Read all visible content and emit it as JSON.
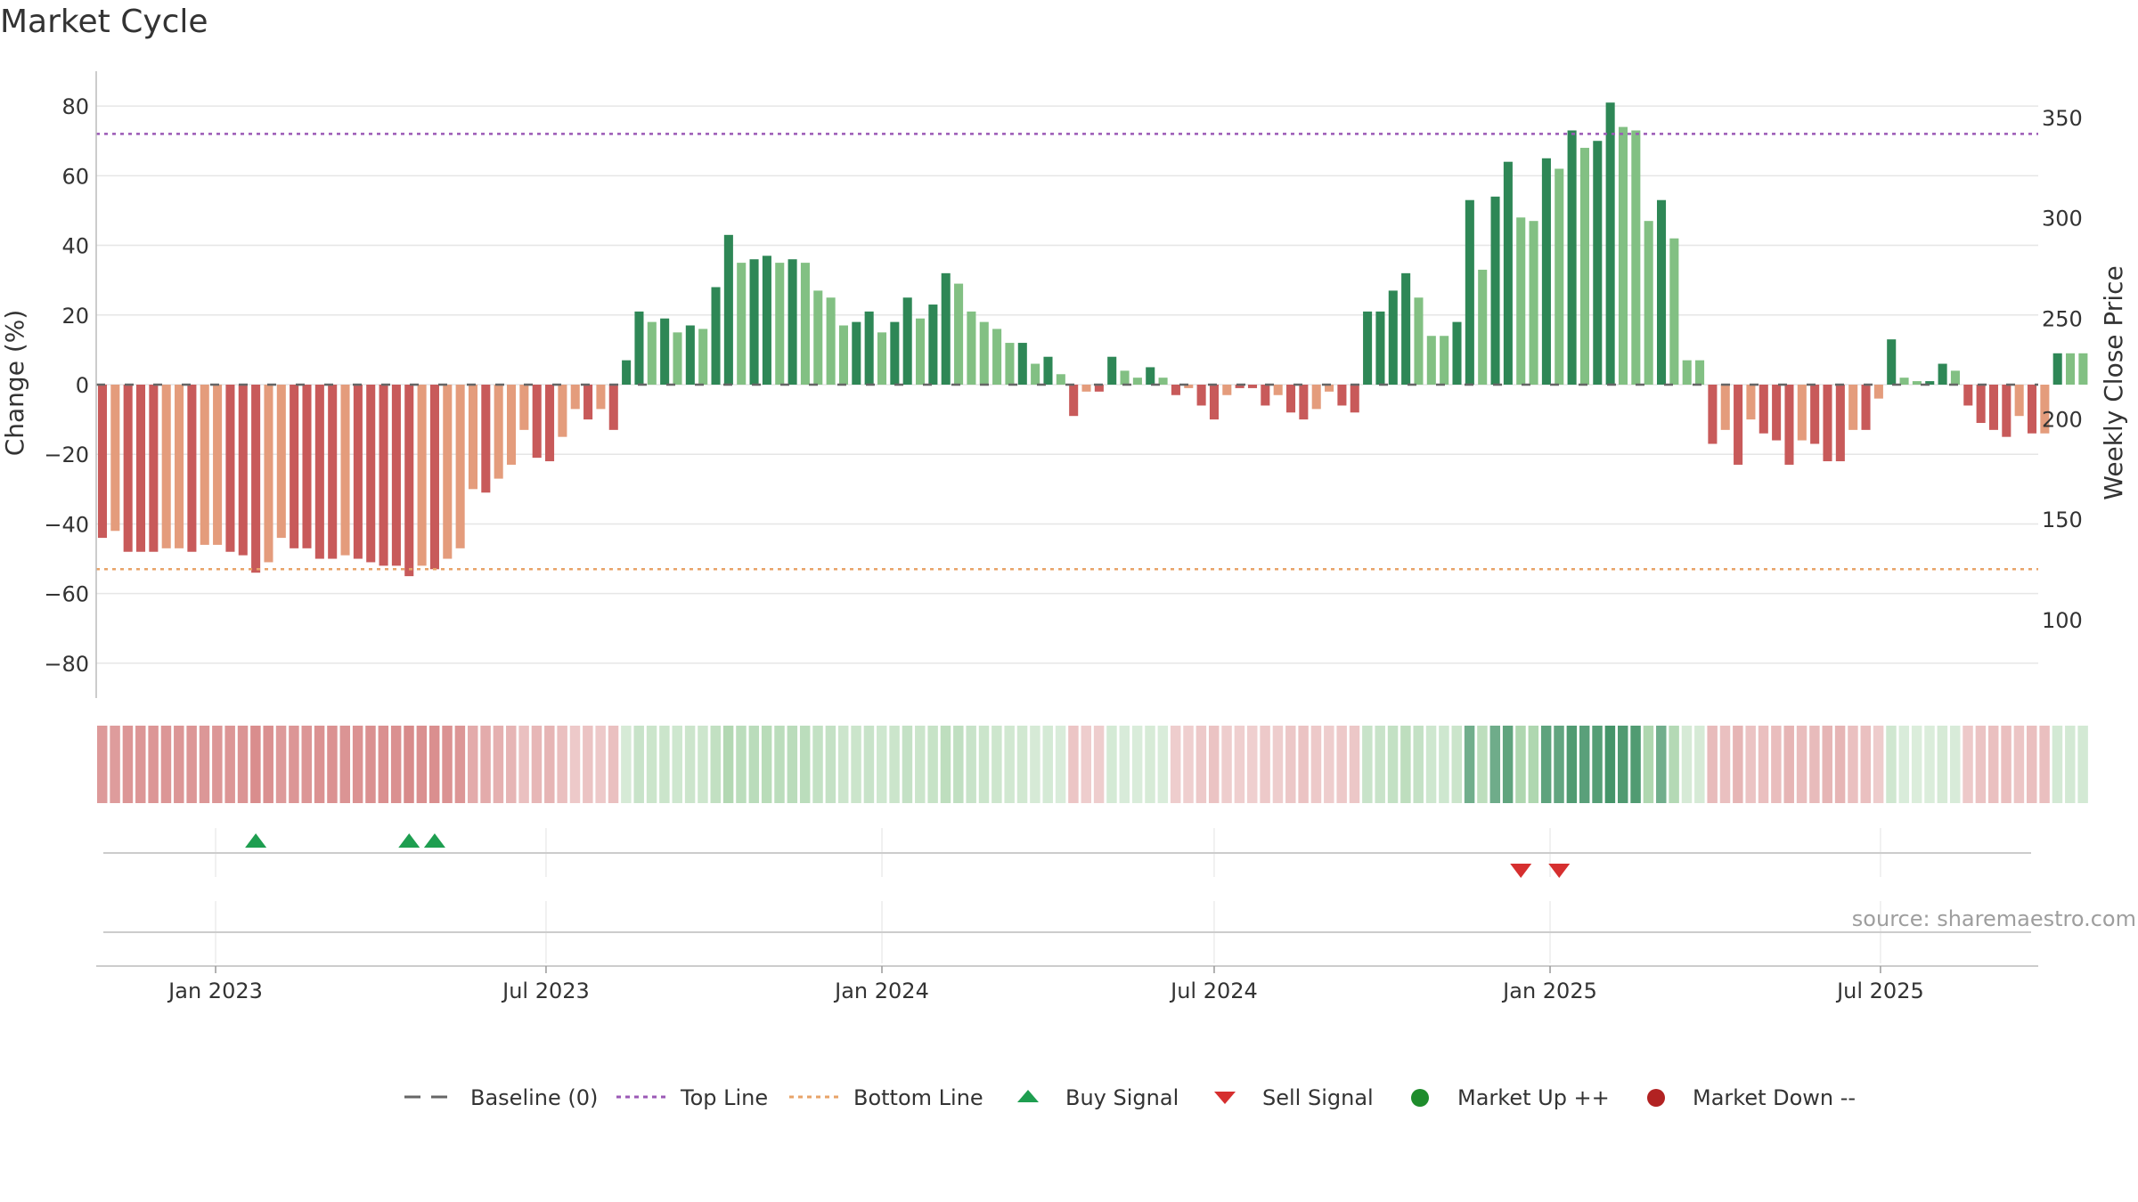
{
  "chart_data": {
    "type": "bar",
    "title": "Market Cycle",
    "ylabel": "Change (%)",
    "y2label": "Weekly Close Price",
    "ylim": [
      -90,
      90
    ],
    "y_ticks": [
      80,
      60,
      40,
      20,
      0,
      -20,
      -40,
      -60,
      -80
    ],
    "y_tick_labels": [
      "80",
      "60",
      "40",
      "20",
      "0",
      "−20",
      "−40",
      "−60",
      "−80"
    ],
    "y2_ticks": [
      350,
      300,
      250,
      200,
      150,
      100
    ],
    "y2_tick_labels": [
      "350",
      "300",
      "250",
      "200",
      "150",
      "100"
    ],
    "y2lim": [
      61,
      373
    ],
    "x_start": "2022-10-31",
    "x_end": "2025-09-22",
    "x_ticks": [
      "2023-01-01",
      "2023-07-01",
      "2024-01-01",
      "2024-07-01",
      "2025-01-01",
      "2025-07-01"
    ],
    "x_tick_labels": [
      "Jan 2023",
      "Jul 2023",
      "Jan 2024",
      "Jul 2024",
      "Jan 2025",
      "Jul 2025"
    ],
    "top_line": 72,
    "bottom_line": -53,
    "grid": true,
    "legend_position": "bottom-center",
    "colors": {
      "down_dark": "#c85a5a",
      "down_light": "#e49c7c",
      "up_dark": "#2e8756",
      "up_light": "#82c083",
      "top_line": "#9b59b6",
      "bottom_line": "#e8a368",
      "buy": "#1e9e50",
      "sell": "#d62f2f",
      "market_up": "#1e8c2c",
      "market_down": "#b22222",
      "baseline": "#666666"
    },
    "weeks": [
      {
        "x": "2022-10-31",
        "v": -44,
        "s": "d"
      },
      {
        "x": "2022-11-07",
        "v": -42,
        "s": "l"
      },
      {
        "x": "2022-11-14",
        "v": -48,
        "s": "d"
      },
      {
        "x": "2022-11-21",
        "v": -48,
        "s": "d"
      },
      {
        "x": "2022-11-28",
        "v": -48,
        "s": "d"
      },
      {
        "x": "2022-12-05",
        "v": -47,
        "s": "l"
      },
      {
        "x": "2022-12-12",
        "v": -47,
        "s": "l"
      },
      {
        "x": "2022-12-19",
        "v": -48,
        "s": "d"
      },
      {
        "x": "2022-12-26",
        "v": -46,
        "s": "l"
      },
      {
        "x": "2023-01-02",
        "v": -46,
        "s": "l"
      },
      {
        "x": "2023-01-09",
        "v": -48,
        "s": "d"
      },
      {
        "x": "2023-01-16",
        "v": -49,
        "s": "d"
      },
      {
        "x": "2023-01-23",
        "v": -54,
        "s": "d"
      },
      {
        "x": "2023-01-30",
        "v": -51,
        "s": "l"
      },
      {
        "x": "2023-02-06",
        "v": -44,
        "s": "l"
      },
      {
        "x": "2023-02-13",
        "v": -47,
        "s": "d"
      },
      {
        "x": "2023-02-20",
        "v": -47,
        "s": "d"
      },
      {
        "x": "2023-02-27",
        "v": -50,
        "s": "d"
      },
      {
        "x": "2023-03-06",
        "v": -50,
        "s": "d"
      },
      {
        "x": "2023-03-13",
        "v": -49,
        "s": "l"
      },
      {
        "x": "2023-03-20",
        "v": -50,
        "s": "d"
      },
      {
        "x": "2023-03-27",
        "v": -51,
        "s": "d"
      },
      {
        "x": "2023-04-03",
        "v": -52,
        "s": "d"
      },
      {
        "x": "2023-04-10",
        "v": -52,
        "s": "d"
      },
      {
        "x": "2023-04-17",
        "v": -55,
        "s": "d"
      },
      {
        "x": "2023-04-24",
        "v": -52,
        "s": "l"
      },
      {
        "x": "2023-05-01",
        "v": -53,
        "s": "d"
      },
      {
        "x": "2023-05-08",
        "v": -50,
        "s": "l"
      },
      {
        "x": "2023-05-15",
        "v": -47,
        "s": "l"
      },
      {
        "x": "2023-05-22",
        "v": -30,
        "s": "l"
      },
      {
        "x": "2023-05-29",
        "v": -31,
        "s": "d"
      },
      {
        "x": "2023-06-05",
        "v": -27,
        "s": "l"
      },
      {
        "x": "2023-06-12",
        "v": -23,
        "s": "l"
      },
      {
        "x": "2023-06-19",
        "v": -13,
        "s": "l"
      },
      {
        "x": "2023-06-26",
        "v": -21,
        "s": "d"
      },
      {
        "x": "2023-07-03",
        "v": -22,
        "s": "d"
      },
      {
        "x": "2023-07-10",
        "v": -15,
        "s": "l"
      },
      {
        "x": "2023-07-17",
        "v": -7,
        "s": "l"
      },
      {
        "x": "2023-07-24",
        "v": -10,
        "s": "d"
      },
      {
        "x": "2023-07-31",
        "v": -7,
        "s": "l"
      },
      {
        "x": "2023-08-07",
        "v": -13,
        "s": "d"
      },
      {
        "x": "2023-08-14",
        "v": 7,
        "s": "d"
      },
      {
        "x": "2023-08-21",
        "v": 21,
        "s": "d"
      },
      {
        "x": "2023-08-28",
        "v": 18,
        "s": "l"
      },
      {
        "x": "2023-09-04",
        "v": 19,
        "s": "d"
      },
      {
        "x": "2023-09-11",
        "v": 15,
        "s": "l"
      },
      {
        "x": "2023-09-18",
        "v": 17,
        "s": "d"
      },
      {
        "x": "2023-09-25",
        "v": 16,
        "s": "l"
      },
      {
        "x": "2023-10-02",
        "v": 28,
        "s": "d"
      },
      {
        "x": "2023-10-09",
        "v": 43,
        "s": "d"
      },
      {
        "x": "2023-10-16",
        "v": 35,
        "s": "l"
      },
      {
        "x": "2023-10-23",
        "v": 36,
        "s": "d"
      },
      {
        "x": "2023-10-30",
        "v": 37,
        "s": "d"
      },
      {
        "x": "2023-11-06",
        "v": 35,
        "s": "l"
      },
      {
        "x": "2023-11-13",
        "v": 36,
        "s": "d"
      },
      {
        "x": "2023-11-20",
        "v": 35,
        "s": "l"
      },
      {
        "x": "2023-11-27",
        "v": 27,
        "s": "l"
      },
      {
        "x": "2023-12-04",
        "v": 25,
        "s": "l"
      },
      {
        "x": "2023-12-11",
        "v": 17,
        "s": "l"
      },
      {
        "x": "2023-12-18",
        "v": 18,
        "s": "d"
      },
      {
        "x": "2023-12-25",
        "v": 21,
        "s": "d"
      },
      {
        "x": "2024-01-01",
        "v": 15,
        "s": "l"
      },
      {
        "x": "2024-01-08",
        "v": 18,
        "s": "d"
      },
      {
        "x": "2024-01-15",
        "v": 25,
        "s": "d"
      },
      {
        "x": "2024-01-22",
        "v": 19,
        "s": "l"
      },
      {
        "x": "2024-01-29",
        "v": 23,
        "s": "d"
      },
      {
        "x": "2024-02-05",
        "v": 32,
        "s": "d"
      },
      {
        "x": "2024-02-12",
        "v": 29,
        "s": "l"
      },
      {
        "x": "2024-02-19",
        "v": 21,
        "s": "l"
      },
      {
        "x": "2024-02-26",
        "v": 18,
        "s": "l"
      },
      {
        "x": "2024-03-04",
        "v": 16,
        "s": "l"
      },
      {
        "x": "2024-03-11",
        "v": 12,
        "s": "l"
      },
      {
        "x": "2024-03-18",
        "v": 12,
        "s": "d"
      },
      {
        "x": "2024-03-25",
        "v": 6,
        "s": "l"
      },
      {
        "x": "2024-04-01",
        "v": 8,
        "s": "d"
      },
      {
        "x": "2024-04-08",
        "v": 3,
        "s": "l"
      },
      {
        "x": "2024-04-15",
        "v": -9,
        "s": "d"
      },
      {
        "x": "2024-04-22",
        "v": -2,
        "s": "l"
      },
      {
        "x": "2024-04-29",
        "v": -2,
        "s": "d"
      },
      {
        "x": "2024-05-06",
        "v": 8,
        "s": "d"
      },
      {
        "x": "2024-05-13",
        "v": 4,
        "s": "l"
      },
      {
        "x": "2024-05-20",
        "v": 2,
        "s": "l"
      },
      {
        "x": "2024-05-27",
        "v": 5,
        "s": "d"
      },
      {
        "x": "2024-06-03",
        "v": 2,
        "s": "l"
      },
      {
        "x": "2024-06-10",
        "v": -3,
        "s": "d"
      },
      {
        "x": "2024-06-17",
        "v": -1,
        "s": "l"
      },
      {
        "x": "2024-06-24",
        "v": -6,
        "s": "d"
      },
      {
        "x": "2024-07-01",
        "v": -10,
        "s": "d"
      },
      {
        "x": "2024-07-08",
        "v": -3,
        "s": "l"
      },
      {
        "x": "2024-07-15",
        "v": -1,
        "s": "d"
      },
      {
        "x": "2024-07-22",
        "v": -1,
        "s": "d"
      },
      {
        "x": "2024-07-29",
        "v": -6,
        "s": "d"
      },
      {
        "x": "2024-08-05",
        "v": -3,
        "s": "l"
      },
      {
        "x": "2024-08-12",
        "v": -8,
        "s": "d"
      },
      {
        "x": "2024-08-19",
        "v": -10,
        "s": "d"
      },
      {
        "x": "2024-08-26",
        "v": -7,
        "s": "l"
      },
      {
        "x": "2024-09-02",
        "v": -2,
        "s": "l"
      },
      {
        "x": "2024-09-09",
        "v": -6,
        "s": "d"
      },
      {
        "x": "2024-09-16",
        "v": -8,
        "s": "d"
      },
      {
        "x": "2024-09-23",
        "v": 21,
        "s": "d"
      },
      {
        "x": "2024-09-30",
        "v": 21,
        "s": "d"
      },
      {
        "x": "2024-10-07",
        "v": 27,
        "s": "d"
      },
      {
        "x": "2024-10-14",
        "v": 32,
        "s": "d"
      },
      {
        "x": "2024-10-21",
        "v": 25,
        "s": "l"
      },
      {
        "x": "2024-10-28",
        "v": 14,
        "s": "l"
      },
      {
        "x": "2024-11-04",
        "v": 14,
        "s": "l"
      },
      {
        "x": "2024-11-11",
        "v": 18,
        "s": "d"
      },
      {
        "x": "2024-11-18",
        "v": 53,
        "s": "d"
      },
      {
        "x": "2024-11-25",
        "v": 33,
        "s": "l"
      },
      {
        "x": "2024-12-02",
        "v": 54,
        "s": "d"
      },
      {
        "x": "2024-12-09",
        "v": 64,
        "s": "d"
      },
      {
        "x": "2024-12-16",
        "v": 48,
        "s": "l"
      },
      {
        "x": "2024-12-23",
        "v": 47,
        "s": "l"
      },
      {
        "x": "2024-12-30",
        "v": 65,
        "s": "d"
      },
      {
        "x": "2025-01-06",
        "v": 62,
        "s": "l"
      },
      {
        "x": "2025-01-13",
        "v": 73,
        "s": "d"
      },
      {
        "x": "2025-01-20",
        "v": 68,
        "s": "l"
      },
      {
        "x": "2025-01-27",
        "v": 70,
        "s": "d"
      },
      {
        "x": "2025-02-03",
        "v": 81,
        "s": "d"
      },
      {
        "x": "2025-02-10",
        "v": 74,
        "s": "l"
      },
      {
        "x": "2025-02-17",
        "v": 73,
        "s": "l"
      },
      {
        "x": "2025-02-24",
        "v": 47,
        "s": "l"
      },
      {
        "x": "2025-03-03",
        "v": 53,
        "s": "d"
      },
      {
        "x": "2025-03-10",
        "v": 42,
        "s": "l"
      },
      {
        "x": "2025-03-17",
        "v": 7,
        "s": "l"
      },
      {
        "x": "2025-03-24",
        "v": 7,
        "s": "l"
      },
      {
        "x": "2025-03-31",
        "v": -17,
        "s": "d"
      },
      {
        "x": "2025-04-07",
        "v": -13,
        "s": "l"
      },
      {
        "x": "2025-04-14",
        "v": -23,
        "s": "d"
      },
      {
        "x": "2025-04-21",
        "v": -10,
        "s": "l"
      },
      {
        "x": "2025-04-28",
        "v": -14,
        "s": "d"
      },
      {
        "x": "2025-05-05",
        "v": -16,
        "s": "d"
      },
      {
        "x": "2025-05-12",
        "v": -23,
        "s": "d"
      },
      {
        "x": "2025-05-19",
        "v": -16,
        "s": "l"
      },
      {
        "x": "2025-05-26",
        "v": -17,
        "s": "d"
      },
      {
        "x": "2025-06-02",
        "v": -22,
        "s": "d"
      },
      {
        "x": "2025-06-09",
        "v": -22,
        "s": "d"
      },
      {
        "x": "2025-06-16",
        "v": -13,
        "s": "l"
      },
      {
        "x": "2025-06-23",
        "v": -13,
        "s": "d"
      },
      {
        "x": "2025-06-30",
        "v": -4,
        "s": "l"
      },
      {
        "x": "2025-07-07",
        "v": 13,
        "s": "d"
      },
      {
        "x": "2025-07-14",
        "v": 2,
        "s": "l"
      },
      {
        "x": "2025-07-21",
        "v": 1,
        "s": "l"
      },
      {
        "x": "2025-07-28",
        "v": 1,
        "s": "d"
      },
      {
        "x": "2025-08-04",
        "v": 6,
        "s": "d"
      },
      {
        "x": "2025-08-11",
        "v": 4,
        "s": "l"
      },
      {
        "x": "2025-08-18",
        "v": -6,
        "s": "d"
      },
      {
        "x": "2025-08-25",
        "v": -11,
        "s": "d"
      },
      {
        "x": "2025-09-01",
        "v": -13,
        "s": "d"
      },
      {
        "x": "2025-09-08",
        "v": -15,
        "s": "d"
      },
      {
        "x": "2025-09-15",
        "v": -9,
        "s": "l"
      },
      {
        "x": "2025-09-22",
        "v": -14,
        "s": "d"
      },
      {
        "x": "2025-09-29",
        "v": -14,
        "s": "l"
      },
      {
        "x": "2025-10-06",
        "v": 9,
        "s": "d"
      },
      {
        "x": "2025-10-13",
        "v": 9,
        "s": "l"
      },
      {
        "x": "2025-10-20",
        "v": 9,
        "s": "l"
      }
    ],
    "buy_signals": [
      "2023-01-23",
      "2023-04-17",
      "2023-05-01"
    ],
    "sell_signals": [
      "2024-12-16",
      "2025-01-06"
    ],
    "source": "source: sharemaestro.com"
  },
  "legend": {
    "baseline": "Baseline (0)",
    "top_line": "Top Line",
    "bottom_line": "Bottom Line",
    "buy_signal": "Buy Signal",
    "sell_signal": "Sell Signal",
    "market_up": "Market Up ++",
    "market_down": "Market Down --"
  }
}
